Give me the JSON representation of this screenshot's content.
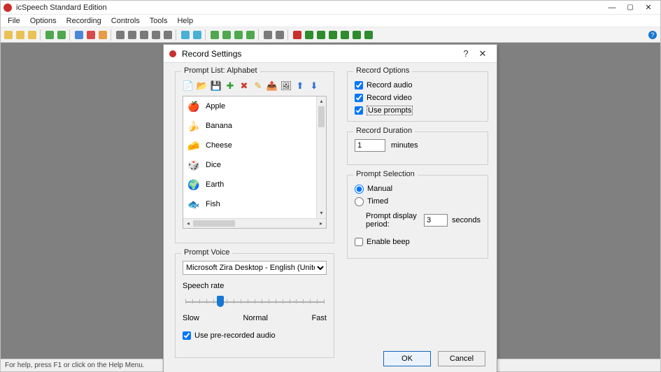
{
  "app": {
    "title": "icSpeech Standard Edition",
    "menu": [
      "File",
      "Options",
      "Recording",
      "Controls",
      "Tools",
      "Help"
    ],
    "status": "For help, press F1 or click on the Help Menu."
  },
  "toolbar_colors": [
    "#e8c255",
    "#e8c255",
    "#e8c255",
    "#4fa84f",
    "#4fa84f",
    "#4a87d8",
    "#d84a4a",
    "#e89a44",
    "#7a7a7a",
    "#7a7a7a",
    "#7a7a7a",
    "#7a7a7a",
    "#7a7a7a",
    "#49b0d6",
    "#49b0d6",
    "#4fa84f",
    "#4fa84f",
    "#4fa84f",
    "#4fa84f",
    "#7a7a7a",
    "#7a7a7a",
    "#c9302c",
    "#2e8b2e",
    "#2e8b2e",
    "#2e8b2e",
    "#2e8b2e",
    "#2e8b2e",
    "#2e8b2e"
  ],
  "dialog": {
    "title": "Record Settings",
    "help_glyph": "?",
    "close_glyph": "✕",
    "prompt_list": {
      "legend": "Prompt List: Alphabet",
      "toolbar_icons": [
        {
          "name": "new-file-icon",
          "glyph": "📄"
        },
        {
          "name": "open-folder-icon",
          "glyph": "📂"
        },
        {
          "name": "save-icon",
          "glyph": "💾"
        },
        {
          "name": "add-icon",
          "glyph": "✚",
          "color": "#2e9e2e"
        },
        {
          "name": "remove-icon",
          "glyph": "✖",
          "color": "#d23a2e"
        },
        {
          "name": "edit-icon",
          "glyph": "✎",
          "color": "#d6a31a"
        },
        {
          "name": "export-icon",
          "glyph": "📤"
        },
        {
          "name": "image-icon",
          "glyph": "🖼"
        },
        {
          "name": "move-up-icon",
          "glyph": "⬆",
          "color": "#2c6fd0"
        },
        {
          "name": "move-down-icon",
          "glyph": "⬇",
          "color": "#2c6fd0"
        }
      ],
      "items": [
        {
          "emoji": "🍎",
          "label": "Apple"
        },
        {
          "emoji": "🍌",
          "label": "Banana"
        },
        {
          "emoji": "🧀",
          "label": "Cheese"
        },
        {
          "emoji": "🎲",
          "label": "Dice"
        },
        {
          "emoji": "🌍",
          "label": "Earth"
        },
        {
          "emoji": "🐟",
          "label": "Fish"
        }
      ]
    },
    "prompt_voice": {
      "legend": "Prompt Voice",
      "selected": "Microsoft Zira Desktop - English (United States)",
      "rate_label": "Speech rate",
      "rate_marks": {
        "slow": "Slow",
        "normal": "Normal",
        "fast": "Fast"
      },
      "use_prerecorded_label": "Use pre-recorded audio",
      "use_prerecorded_checked": true
    },
    "record_options": {
      "legend": "Record Options",
      "audio": {
        "label": "Record audio",
        "checked": true
      },
      "video": {
        "label": "Record video",
        "checked": true
      },
      "prompts": {
        "label": "Use prompts",
        "checked": true
      }
    },
    "record_duration": {
      "legend": "Record Duration",
      "value": "1",
      "unit": "minutes"
    },
    "prompt_selection": {
      "legend": "Prompt Selection",
      "manual_label": "Manual",
      "timed_label": "Timed",
      "selected": "manual",
      "period_label": "Prompt display period:",
      "period_value": "3",
      "period_unit": "seconds",
      "beep_label": "Enable beep",
      "beep_checked": false
    },
    "buttons": {
      "ok": "OK",
      "cancel": "Cancel"
    }
  }
}
